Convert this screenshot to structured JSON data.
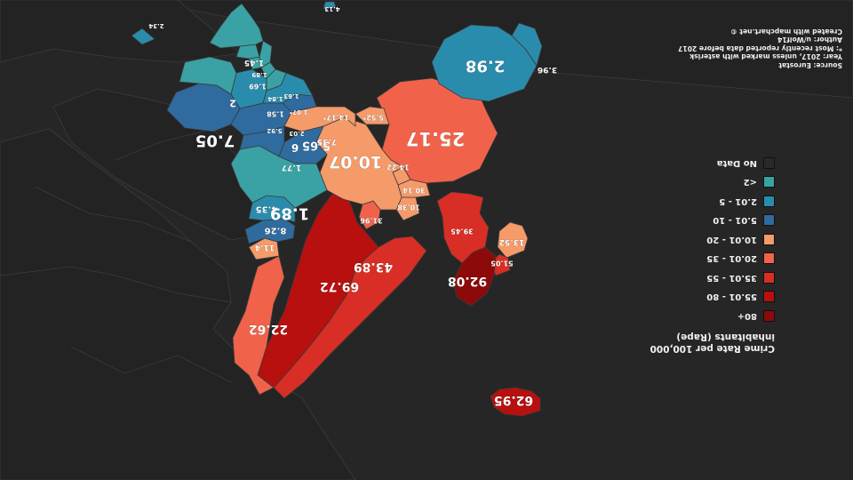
{
  "title": "Crime Rate per 100,000 inhabitants (Rape)",
  "legend": {
    "items": [
      {
        "label": "80+",
        "color": "#8c0a0a"
      },
      {
        "label": "55.01 - 80",
        "color": "#b80f0f"
      },
      {
        "label": "35.01 - 55",
        "color": "#d92e25"
      },
      {
        "label": "20.01 - 35",
        "color": "#f0634a"
      },
      {
        "label": "10.01 - 20",
        "color": "#f59a69"
      },
      {
        "label": "5.01 - 10",
        "color": "#2f6b9e"
      },
      {
        "label": "2.01 - 5",
        "color": "#2a8cad"
      },
      {
        "label": "<2",
        "color": "#3aa2a5"
      },
      {
        "label": "No Data",
        "color": "#2a2a2a"
      }
    ]
  },
  "info": {
    "source": "Source: Eurostat",
    "year": "Year: 2017, unless marked with asterisk",
    "note": "*: Most recently reported data before 2017",
    "author": "Author: u/Wolf14",
    "credit": "Created with mapchart.net ©"
  },
  "regions": {
    "iceland": "62.95",
    "ireland": "13.52",
    "northern_ireland": "51.05",
    "scotland": "92.08",
    "england_wales": "39.45",
    "norway": "43.89",
    "sweden": "69.72",
    "finland": "22.62",
    "denmark": "31.96",
    "estonia": "11.4",
    "latvia": "8.26",
    "lithuania": "4.35",
    "netherlands": "10.38",
    "belgium": "30.14",
    "luxembourg": "14.22",
    "france": "25.17",
    "germany": "10.07",
    "switzerland": "5.52*",
    "austria": "14.17*",
    "czechia": "5.65",
    "poland": "1.89",
    "slovakia": "1.77",
    "hungary": "6",
    "slovenia": "7.35",
    "croatia": "2.03",
    "serbia": "5.92",
    "romania": "7.05",
    "bulgaria": "2",
    "montenegro": "1.07*",
    "kosovo": "1.58",
    "albania": "1.84",
    "north_macedonia": "1.69",
    "bosnia": "1.63",
    "greece": "1.45",
    "greece_small": "1.89",
    "turkey": "2.34",
    "cyprus": "4.13",
    "spain": "2.98",
    "portugal": "3.96"
  }
}
